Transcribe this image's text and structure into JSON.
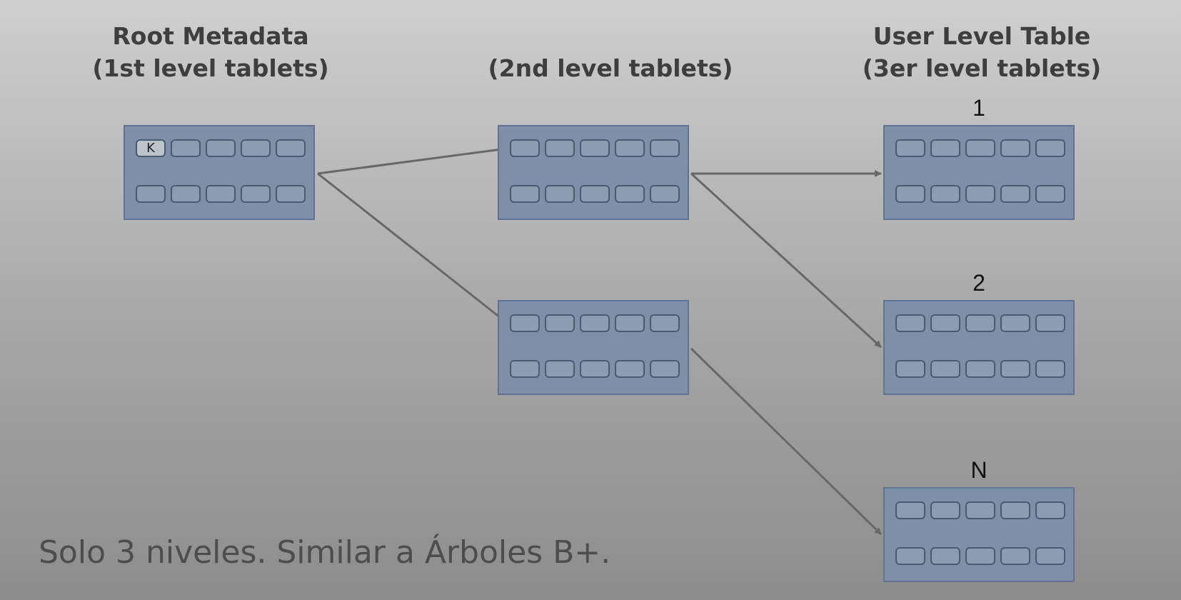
{
  "headings": {
    "root": {
      "line1": "Root Metadata",
      "line2": "(1st level tablets)"
    },
    "second": {
      "line2": "(2nd level tablets)"
    },
    "user": {
      "line1": "User Level Table",
      "line2": "(3er level tablets)"
    }
  },
  "root_tablet": {
    "key_label": "K"
  },
  "user_tablets": [
    {
      "label": "1"
    },
    {
      "label": "2"
    },
    {
      "label": "N"
    }
  ],
  "caption": "Solo 3 niveles. Similar a Árboles B+.",
  "colors": {
    "tablet_fill": "#7f8fa8",
    "tablet_border": "#5f7393",
    "arrow": "#686868"
  }
}
